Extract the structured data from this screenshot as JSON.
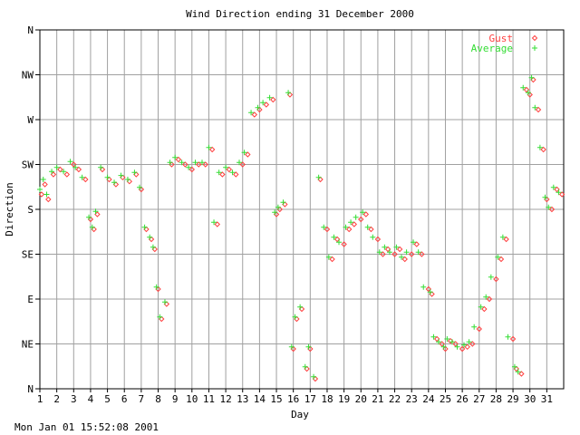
{
  "footer": {
    "timestamp": "Mon Jan 01 15:52:08 2001"
  },
  "colors": {
    "gust": "#ff4040",
    "average": "#33dd33",
    "grid": "#a0a0a0",
    "frame": "#000000",
    "background": "#ffffff"
  },
  "chart_data": {
    "type": "scatter",
    "title": "Wind Direction ending 31 December 2000",
    "xlabel": "Day",
    "ylabel": "Direction",
    "xlim": [
      1,
      32
    ],
    "ylim": [
      0,
      360
    ],
    "x_ticks": [
      "1",
      "2",
      "3",
      "4",
      "5",
      "6",
      "7",
      "8",
      "9",
      "10",
      "11",
      "12",
      "13",
      "14",
      "15",
      "16",
      "17",
      "18",
      "19",
      "20",
      "21",
      "22",
      "23",
      "24",
      "25",
      "26",
      "27",
      "28",
      "29",
      "30",
      "31"
    ],
    "y_ticks": [
      {
        "value": 0,
        "label": "N"
      },
      {
        "value": 45,
        "label": "NE"
      },
      {
        "value": 90,
        "label": "E"
      },
      {
        "value": 135,
        "label": "SE"
      },
      {
        "value": 180,
        "label": "S"
      },
      {
        "value": 225,
        "label": "SW"
      },
      {
        "value": 270,
        "label": "W"
      },
      {
        "value": 315,
        "label": "NW"
      },
      {
        "value": 360,
        "label": "N"
      }
    ],
    "grid": true,
    "legend": "top-right",
    "series": [
      {
        "name": "Gust",
        "marker": "diamond",
        "x": [
          1.1,
          1.3,
          1.5,
          1.8,
          2.2,
          2.6,
          3.0,
          3.3,
          3.7,
          4.0,
          4.2,
          4.4,
          4.7,
          5.1,
          5.5,
          5.9,
          6.3,
          6.7,
          7.0,
          7.3,
          7.6,
          7.8,
          8.0,
          8.2,
          8.5,
          8.8,
          9.2,
          9.6,
          10.0,
          10.4,
          10.8,
          11.2,
          11.5,
          11.8,
          12.2,
          12.6,
          13.0,
          13.3,
          13.7,
          14.0,
          14.4,
          14.8,
          15.0,
          15.2,
          15.5,
          15.8,
          16.0,
          16.2,
          16.5,
          16.8,
          17.0,
          17.3,
          17.6,
          18.0,
          18.3,
          18.6,
          19.0,
          19.3,
          19.6,
          20.0,
          20.3,
          20.6,
          21.0,
          21.3,
          21.6,
          22.0,
          22.3,
          22.6,
          23.0,
          23.3,
          23.6,
          24.0,
          24.2,
          24.5,
          24.8,
          25.0,
          25.3,
          25.6,
          26.0,
          26.3,
          26.6,
          27.0,
          27.3,
          27.6,
          28.0,
          28.3,
          28.6,
          29.0,
          29.2,
          29.5,
          29.8,
          30.0,
          30.2,
          30.5,
          30.8,
          31.0,
          31.3,
          31.6,
          31.9
        ],
        "y": [
          195,
          205,
          190,
          215,
          220,
          215,
          225,
          220,
          210,
          170,
          160,
          175,
          220,
          210,
          205,
          212,
          208,
          215,
          200,
          160,
          150,
          140,
          100,
          70,
          85,
          225,
          230,
          225,
          220,
          225,
          225,
          240,
          165,
          215,
          220,
          215,
          225,
          235,
          275,
          280,
          285,
          290,
          175,
          180,
          185,
          295,
          40,
          70,
          80,
          20,
          40,
          10,
          210,
          160,
          130,
          150,
          145,
          160,
          165,
          170,
          175,
          160,
          150,
          135,
          140,
          135,
          140,
          130,
          135,
          145,
          135,
          100,
          95,
          50,
          45,
          40,
          48,
          45,
          40,
          42,
          45,
          60,
          80,
          90,
          110,
          130,
          150,
          50,
          20,
          15,
          300,
          295,
          310,
          280,
          240,
          190,
          180,
          200,
          195
        ],
        "color_key": "gust"
      },
      {
        "name": "Average",
        "marker": "plus",
        "x": [
          1.0,
          1.2,
          1.4,
          1.7,
          2.0,
          2.4,
          2.8,
          3.1,
          3.5,
          3.9,
          4.1,
          4.3,
          4.6,
          5.0,
          5.4,
          5.8,
          6.2,
          6.6,
          6.9,
          7.2,
          7.5,
          7.7,
          7.9,
          8.1,
          8.4,
          8.7,
          9.0,
          9.4,
          9.8,
          10.2,
          10.6,
          11.0,
          11.3,
          11.6,
          12.0,
          12.4,
          12.8,
          13.1,
          13.5,
          13.9,
          14.2,
          14.6,
          14.9,
          15.1,
          15.4,
          15.7,
          15.9,
          16.1,
          16.4,
          16.7,
          16.9,
          17.2,
          17.5,
          17.8,
          18.1,
          18.4,
          18.7,
          19.1,
          19.4,
          19.7,
          20.1,
          20.4,
          20.7,
          21.1,
          21.4,
          21.7,
          22.1,
          22.4,
          22.7,
          23.1,
          23.4,
          23.7,
          24.1,
          24.3,
          24.6,
          24.9,
          25.1,
          25.4,
          25.7,
          26.1,
          26.4,
          26.7,
          27.1,
          27.4,
          27.7,
          28.1,
          28.4,
          28.7,
          29.1,
          29.3,
          29.6,
          29.9,
          30.1,
          30.3,
          30.6,
          30.9,
          31.1,
          31.4,
          31.7
        ],
        "y": [
          200,
          210,
          195,
          218,
          222,
          218,
          228,
          222,
          212,
          172,
          162,
          178,
          222,
          212,
          207,
          214,
          210,
          217,
          202,
          162,
          152,
          142,
          102,
          72,
          87,
          227,
          232,
          227,
          222,
          227,
          227,
          242,
          167,
          217,
          222,
          217,
          227,
          237,
          277,
          282,
          287,
          292,
          177,
          182,
          187,
          297,
          42,
          72,
          82,
          22,
          42,
          12,
          212,
          162,
          132,
          152,
          147,
          162,
          167,
          172,
          177,
          162,
          152,
          137,
          142,
          137,
          142,
          132,
          137,
          147,
          137,
          102,
          97,
          52,
          47,
          42,
          50,
          47,
          42,
          44,
          47,
          62,
          82,
          92,
          112,
          132,
          152,
          52,
          22,
          17,
          302,
          297,
          312,
          282,
          242,
          192,
          182,
          202,
          197
        ],
        "color_key": "average"
      }
    ]
  }
}
